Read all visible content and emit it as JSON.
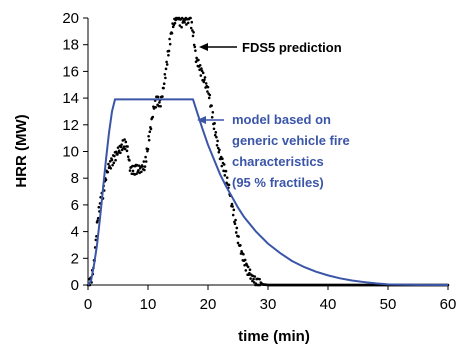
{
  "chart_data": {
    "type": "line",
    "xlabel": "time (min)",
    "ylabel": "HRR (MW)",
    "xlim": [
      0,
      60
    ],
    "ylim": [
      0,
      20
    ],
    "xticks": [
      0,
      10,
      20,
      30,
      40,
      50,
      60
    ],
    "yticks": [
      0,
      2,
      4,
      6,
      8,
      10,
      12,
      14,
      16,
      18,
      20
    ],
    "grid": false,
    "colors": {
      "fds": "#000000",
      "model": "#3b55a8"
    },
    "series": [
      {
        "name": "FDS5 prediction",
        "style": "dotted",
        "x": [
          0,
          0.5,
          1,
          1.5,
          2,
          2.5,
          3,
          3.5,
          4,
          4.5,
          5,
          5.5,
          6,
          6.5,
          7,
          7.5,
          8,
          8.5,
          9,
          9.5,
          10,
          10.5,
          11,
          11.5,
          12,
          12.5,
          13,
          13.5,
          14,
          14.5,
          15,
          15.5,
          16,
          16.5,
          17,
          17.5,
          18,
          18.5,
          19,
          19.5,
          20,
          20.5,
          21,
          21.5,
          22,
          22.5,
          23,
          23.5,
          24,
          24.5,
          25,
          25.5,
          26,
          26.5,
          27,
          27.5,
          28,
          28.5,
          29,
          30,
          35,
          40,
          45,
          50,
          55,
          60
        ],
        "y": [
          0,
          0.3,
          1.5,
          4.5,
          6.2,
          6.8,
          8.2,
          8.9,
          9.2,
          9.6,
          10.0,
          10.3,
          10.6,
          10.4,
          8.8,
          8.5,
          8.7,
          8.6,
          8.8,
          9.0,
          10.5,
          12.0,
          13.3,
          13.9,
          13.5,
          14.5,
          16.2,
          17.8,
          19.2,
          19.8,
          20.0,
          19.6,
          19.9,
          19.8,
          20.0,
          19.0,
          17.0,
          16.4,
          15.8,
          15.2,
          14.6,
          13.5,
          12.0,
          10.8,
          9.6,
          9.0,
          8.2,
          7.2,
          6.0,
          4.8,
          3.5,
          2.6,
          1.8,
          1.2,
          0.8,
          0.5,
          0.2,
          0.1,
          0.05,
          0,
          0,
          0,
          0,
          0,
          0,
          0
        ]
      },
      {
        "name": "model based on generic vehicle fire characteristics (95 % fractiles)",
        "style": "solid",
        "x": [
          0,
          0.5,
          1,
          1.5,
          2,
          2.5,
          3,
          3.5,
          4,
          4.5,
          17.5,
          18,
          19,
          20,
          21,
          22,
          23,
          24,
          25,
          26,
          28,
          30,
          32,
          34,
          36,
          38,
          40,
          42,
          44,
          46,
          48,
          50,
          55,
          60
        ],
        "y": [
          0,
          0.3,
          1.5,
          3.0,
          5.0,
          7.2,
          9.4,
          11.4,
          13.0,
          13.9,
          13.9,
          13.2,
          11.8,
          10.5,
          9.4,
          8.3,
          7.4,
          6.6,
          5.8,
          5.1,
          4.0,
          3.1,
          2.4,
          1.8,
          1.35,
          1.0,
          0.72,
          0.5,
          0.34,
          0.22,
          0.12,
          0.05,
          0.01,
          0
        ]
      }
    ],
    "annotations": [
      {
        "lines": [
          "FDS5 prediction"
        ],
        "series": 0,
        "color": "#000000"
      },
      {
        "lines": [
          "model based on",
          "generic vehicle fire",
          "characteristics",
          "(95 % fractiles)"
        ],
        "series": 1,
        "color": "#3b55a8"
      }
    ]
  }
}
